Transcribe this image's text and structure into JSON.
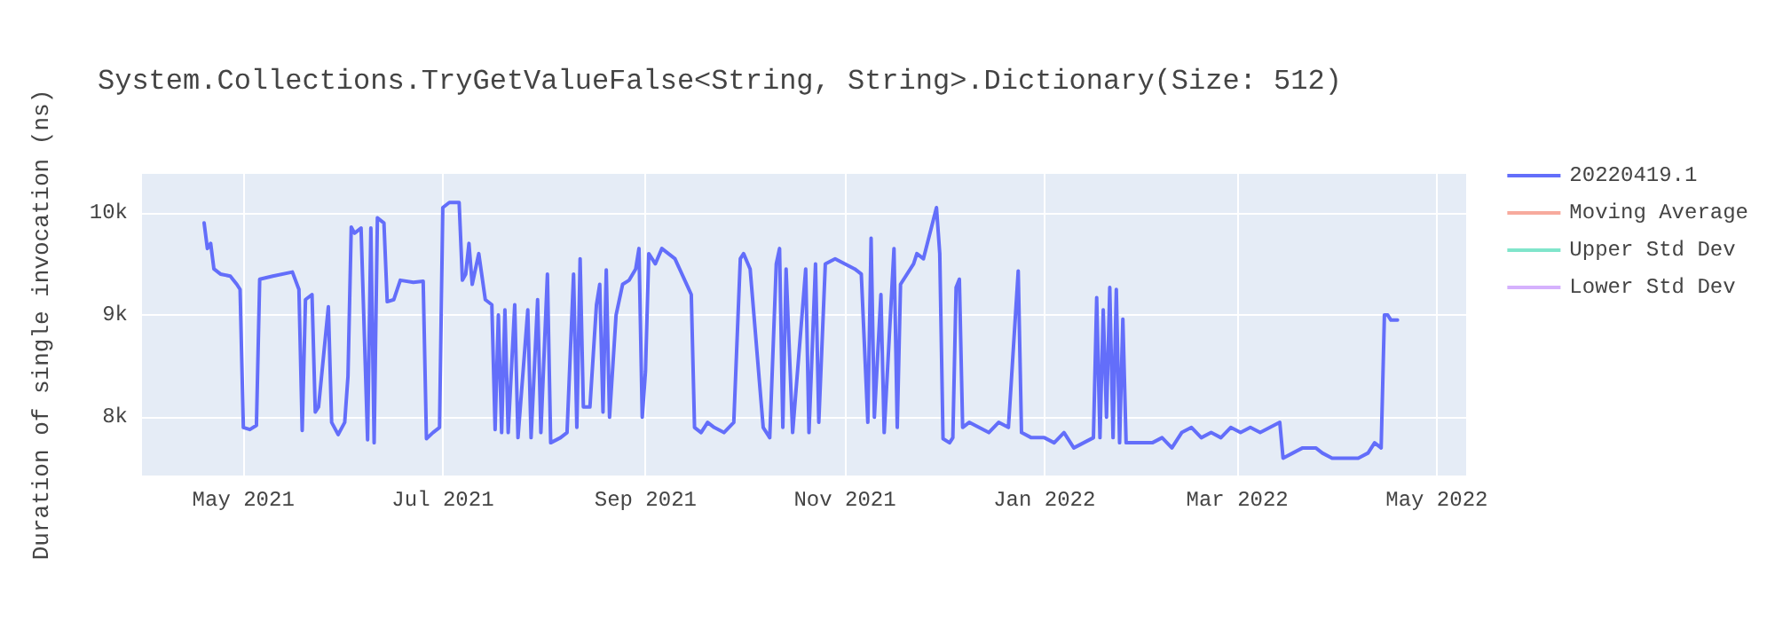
{
  "chart_data": {
    "type": "line",
    "title": "System.Collections.TryGetValueFalse<String, String>.Dictionary(Size: 512)",
    "ylabel": "Duration of single invocation (ns)",
    "x": [
      "2021-04-19",
      "2021-04-20",
      "2021-04-21",
      "2021-04-22",
      "2021-04-24",
      "2021-04-27",
      "2021-04-29",
      "2021-04-30",
      "2021-05-01",
      "2021-05-03",
      "2021-05-05",
      "2021-05-06",
      "2021-05-10",
      "2021-05-16",
      "2021-05-18",
      "2021-05-19",
      "2021-05-20",
      "2021-05-22",
      "2021-05-23",
      "2021-05-24",
      "2021-05-27",
      "2021-05-28",
      "2021-05-30",
      "2021-06-01",
      "2021-06-02",
      "2021-06-03",
      "2021-06-04",
      "2021-06-06",
      "2021-06-08",
      "2021-06-09",
      "2021-06-10",
      "2021-06-11",
      "2021-06-13",
      "2021-06-14",
      "2021-06-16",
      "2021-06-18",
      "2021-06-22",
      "2021-06-25",
      "2021-06-26",
      "2021-06-28",
      "2021-06-30",
      "2021-07-01",
      "2021-07-03",
      "2021-07-06",
      "2021-07-07",
      "2021-07-08",
      "2021-07-09",
      "2021-07-10",
      "2021-07-12",
      "2021-07-14",
      "2021-07-16",
      "2021-07-17",
      "2021-07-18",
      "2021-07-19",
      "2021-07-20",
      "2021-07-21",
      "2021-07-23",
      "2021-07-24",
      "2021-07-27",
      "2021-07-28",
      "2021-07-30",
      "2021-07-31",
      "2021-08-02",
      "2021-08-03",
      "2021-08-06",
      "2021-08-08",
      "2021-08-10",
      "2021-08-11",
      "2021-08-12",
      "2021-08-13",
      "2021-08-15",
      "2021-08-17",
      "2021-08-18",
      "2021-08-19",
      "2021-08-20",
      "2021-08-21",
      "2021-08-23",
      "2021-08-25",
      "2021-08-27",
      "2021-08-29",
      "2021-08-30",
      "2021-08-31",
      "2021-09-01",
      "2021-09-02",
      "2021-09-04",
      "2021-09-06",
      "2021-09-08",
      "2021-09-10",
      "2021-09-14",
      "2021-09-15",
      "2021-09-16",
      "2021-09-18",
      "2021-09-20",
      "2021-09-22",
      "2021-09-25",
      "2021-09-28",
      "2021-09-30",
      "2021-10-01",
      "2021-10-03",
      "2021-10-07",
      "2021-10-09",
      "2021-10-11",
      "2021-10-12",
      "2021-10-13",
      "2021-10-14",
      "2021-10-16",
      "2021-10-20",
      "2021-10-21",
      "2021-10-23",
      "2021-10-24",
      "2021-10-26",
      "2021-10-29",
      "2021-11-01",
      "2021-11-04",
      "2021-11-06",
      "2021-11-08",
      "2021-11-09",
      "2021-11-10",
      "2021-11-12",
      "2021-11-13",
      "2021-11-16",
      "2021-11-17",
      "2021-11-18",
      "2021-11-22",
      "2021-11-23",
      "2021-11-25",
      "2021-11-29",
      "2021-11-30",
      "2021-12-01",
      "2021-12-03",
      "2021-12-04",
      "2021-12-05",
      "2021-12-06",
      "2021-12-07",
      "2021-12-09",
      "2021-12-12",
      "2021-12-15",
      "2021-12-18",
      "2021-12-21",
      "2021-12-24",
      "2021-12-25",
      "2021-12-28",
      "2022-01-01",
      "2022-01-04",
      "2022-01-07",
      "2022-01-10",
      "2022-01-13",
      "2022-01-16",
      "2022-01-17",
      "2022-01-18",
      "2022-01-19",
      "2022-01-20",
      "2022-01-21",
      "2022-01-22",
      "2022-01-23",
      "2022-01-24",
      "2022-01-25",
      "2022-01-26",
      "2022-01-30",
      "2022-02-03",
      "2022-02-06",
      "2022-02-09",
      "2022-02-12",
      "2022-02-15",
      "2022-02-18",
      "2022-02-21",
      "2022-02-24",
      "2022-02-27",
      "2022-03-02",
      "2022-03-05",
      "2022-03-08",
      "2022-03-11",
      "2022-03-14",
      "2022-03-15",
      "2022-03-18",
      "2022-03-21",
      "2022-03-25",
      "2022-03-27",
      "2022-03-30",
      "2022-04-03",
      "2022-04-07",
      "2022-04-10",
      "2022-04-12",
      "2022-04-14",
      "2022-04-15",
      "2022-04-16",
      "2022-04-17",
      "2022-04-19"
    ],
    "series": [
      {
        "name": "20220419.1",
        "color": "#636efa",
        "values": [
          9900,
          9650,
          9700,
          9450,
          9400,
          9380,
          9300,
          9250,
          7900,
          7880,
          7920,
          9350,
          9380,
          9420,
          9250,
          7870,
          9150,
          9200,
          8050,
          8100,
          9080,
          7950,
          7830,
          7950,
          8400,
          9860,
          9800,
          9850,
          7780,
          9850,
          7750,
          9950,
          9900,
          9130,
          9150,
          9340,
          9320,
          9330,
          7790,
          7850,
          7900,
          10050,
          10100,
          10100,
          9340,
          9400,
          9700,
          9300,
          9600,
          9150,
          9100,
          7880,
          9000,
          7850,
          9050,
          7850,
          9100,
          7800,
          9050,
          7800,
          9150,
          7850,
          9400,
          7750,
          7800,
          7850,
          9400,
          7900,
          9550,
          8100,
          8100,
          9100,
          9300,
          8050,
          9440,
          8000,
          9000,
          9300,
          9340,
          9450,
          9650,
          8000,
          8450,
          9600,
          9500,
          9650,
          9600,
          9550,
          9270,
          9200,
          7900,
          7850,
          7950,
          7900,
          7850,
          7950,
          9550,
          9600,
          9450,
          7900,
          7800,
          9500,
          9650,
          7900,
          9450,
          7850,
          9450,
          7850,
          9500,
          7950,
          9500,
          9550,
          9500,
          9450,
          9400,
          7950,
          9750,
          8000,
          9200,
          7850,
          9650,
          7900,
          9300,
          9500,
          9600,
          9550,
          10050,
          9600,
          7790,
          7750,
          7800,
          9270,
          9350,
          7900,
          7950,
          7900,
          7850,
          7950,
          7900,
          9430,
          7850,
          7800,
          7800,
          7750,
          7850,
          7700,
          7750,
          7800,
          9170,
          7800,
          9050,
          8000,
          9270,
          7800,
          9250,
          7750,
          8960,
          7750,
          7750,
          7750,
          7800,
          7700,
          7850,
          7900,
          7800,
          7850,
          7800,
          7900,
          7850,
          7900,
          7850,
          7900,
          7950,
          7600,
          7650,
          7700,
          7700,
          7650,
          7600,
          7600,
          7600,
          7650,
          7750,
          7700,
          9000,
          9000,
          8950,
          8950
        ]
      },
      {
        "name": "Moving Average",
        "color": "#f7aa9d",
        "values": [
          null,
          null,
          null,
          null,
          null,
          null,
          null,
          null,
          null,
          null,
          null,
          null,
          null,
          null,
          null,
          null,
          null,
          null,
          null,
          null,
          null,
          null,
          null,
          null,
          null,
          null,
          null,
          null,
          null,
          null,
          null,
          null,
          null,
          null,
          null,
          null,
          null,
          null,
          null,
          null,
          null,
          null,
          null,
          null,
          null,
          null,
          null,
          null,
          null,
          null,
          null,
          null,
          null,
          null,
          null,
          null,
          null,
          null,
          null,
          null,
          null,
          null,
          null,
          null,
          null,
          null,
          null,
          null,
          null,
          null,
          null,
          null,
          null,
          null,
          null,
          null,
          null,
          null,
          null,
          null,
          null,
          null,
          null,
          null,
          null,
          null,
          null,
          null,
          null,
          null,
          null,
          null,
          null,
          null,
          null,
          null,
          null,
          null,
          null,
          null,
          null,
          null,
          null,
          null,
          null,
          null,
          null,
          null,
          null,
          null,
          null,
          null,
          null,
          null,
          null,
          null,
          null,
          null,
          null,
          null,
          null,
          null,
          null,
          null,
          null,
          null,
          null,
          null,
          null,
          null,
          null,
          null,
          null,
          null,
          null,
          null,
          null,
          null,
          null,
          null,
          null,
          null,
          null,
          null,
          null,
          null,
          null,
          null,
          null,
          null,
          null,
          null,
          null,
          null,
          null,
          null,
          null,
          null,
          null,
          null,
          null,
          null,
          null,
          null,
          null,
          null,
          null,
          null,
          null,
          null,
          null,
          null,
          null,
          null,
          null,
          null,
          null,
          null,
          null,
          null,
          null,
          null,
          null,
          null,
          null,
          null,
          null,
          null
        ]
      },
      {
        "name": "Upper Std Dev",
        "color": "#80e5cb",
        "values": [
          null,
          null,
          null,
          null,
          null,
          null,
          null,
          null,
          null,
          null,
          null,
          null,
          null,
          null,
          null,
          null,
          null,
          null,
          null,
          null,
          null,
          null,
          null,
          null,
          null,
          null,
          null,
          null,
          null,
          null,
          null,
          null,
          null,
          null,
          null,
          null,
          null,
          null,
          null,
          null,
          null,
          null,
          null,
          null,
          null,
          null,
          null,
          null,
          null,
          null,
          null,
          null,
          null,
          null,
          null,
          null,
          null,
          null,
          null,
          null,
          null,
          null,
          null,
          null,
          null,
          null,
          null,
          null,
          null,
          null,
          null,
          null,
          null,
          null,
          null,
          null,
          null,
          null,
          null,
          null,
          null,
          null,
          null,
          null,
          null,
          null,
          null,
          null,
          null,
          null,
          null,
          null,
          null,
          null,
          null,
          null,
          null,
          null,
          null,
          null,
          null,
          null,
          null,
          null,
          null,
          null,
          null,
          null,
          null,
          null,
          null,
          null,
          null,
          null,
          null,
          null,
          null,
          null,
          null,
          null,
          null,
          null,
          null,
          null,
          null,
          null,
          null,
          null,
          null,
          null,
          null,
          null,
          null,
          null,
          null,
          null,
          null,
          null,
          null,
          null,
          null,
          null,
          null,
          null,
          null,
          null,
          null,
          null,
          null,
          null,
          null,
          null,
          null,
          null,
          null,
          null,
          null,
          null,
          null,
          null,
          null,
          null,
          null,
          null,
          null,
          null,
          null,
          null,
          null,
          null,
          null,
          null,
          null,
          null,
          null,
          null,
          null,
          null,
          null,
          null,
          null,
          null,
          null,
          null,
          null,
          null,
          null,
          null
        ]
      },
      {
        "name": "Lower Std Dev",
        "color": "#d5b1fd",
        "values": [
          null,
          null,
          null,
          null,
          null,
          null,
          null,
          null,
          null,
          null,
          null,
          null,
          null,
          null,
          null,
          null,
          null,
          null,
          null,
          null,
          null,
          null,
          null,
          null,
          null,
          null,
          null,
          null,
          null,
          null,
          null,
          null,
          null,
          null,
          null,
          null,
          null,
          null,
          null,
          null,
          null,
          null,
          null,
          null,
          null,
          null,
          null,
          null,
          null,
          null,
          null,
          null,
          null,
          null,
          null,
          null,
          null,
          null,
          null,
          null,
          null,
          null,
          null,
          null,
          null,
          null,
          null,
          null,
          null,
          null,
          null,
          null,
          null,
          null,
          null,
          null,
          null,
          null,
          null,
          null,
          null,
          null,
          null,
          null,
          null,
          null,
          null,
          null,
          null,
          null,
          null,
          null,
          null,
          null,
          null,
          null,
          null,
          null,
          null,
          null,
          null,
          null,
          null,
          null,
          null,
          null,
          null,
          null,
          null,
          null,
          null,
          null,
          null,
          null,
          null,
          null,
          null,
          null,
          null,
          null,
          null,
          null,
          null,
          null,
          null,
          null,
          null,
          null,
          null,
          null,
          null,
          null,
          null,
          null,
          null,
          null,
          null,
          null,
          null,
          null,
          null,
          null,
          null,
          null,
          null,
          null,
          null,
          null,
          null,
          null,
          null,
          null,
          null,
          null,
          null,
          null,
          null,
          null,
          null,
          null,
          null,
          null,
          null,
          null,
          null,
          null,
          null,
          null,
          null,
          null,
          null,
          null,
          null,
          null,
          null,
          null,
          null,
          null,
          null,
          null,
          null,
          null,
          null,
          null,
          null,
          null,
          null,
          null
        ]
      }
    ],
    "xlim": [
      "2021-03-31",
      "2022-05-10"
    ],
    "xticks": [
      {
        "value": "2021-05-01",
        "label": "May 2021"
      },
      {
        "value": "2021-07-01",
        "label": "Jul 2021"
      },
      {
        "value": "2021-09-01",
        "label": "Sep 2021"
      },
      {
        "value": "2021-11-01",
        "label": "Nov 2021"
      },
      {
        "value": "2022-01-01",
        "label": "Jan 2022"
      },
      {
        "value": "2022-03-01",
        "label": "Mar 2022"
      },
      {
        "value": "2022-05-01",
        "label": "May 2022"
      }
    ],
    "ylim": [
      7430,
      10380
    ],
    "yticks": [
      {
        "value": 8000,
        "label": "8k"
      },
      {
        "value": 9000,
        "label": "9k"
      },
      {
        "value": 10000,
        "label": "10k"
      }
    ],
    "grid": true,
    "legend": "top right"
  }
}
